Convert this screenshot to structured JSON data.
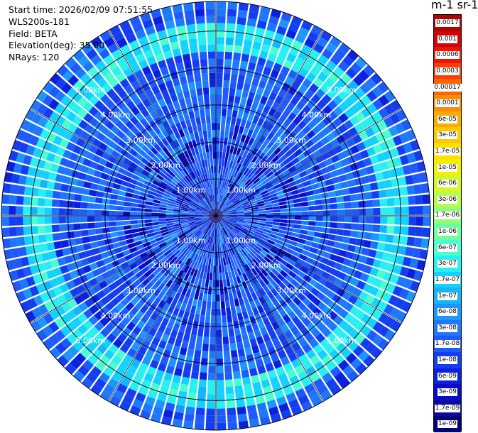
{
  "info": {
    "start_time": "Start time: 2026/02/09 07:51:55",
    "device": "WLS200s-181",
    "field": "Field: BETA",
    "elevation": "Elevation(deg): 35.00",
    "nrays": "NRays: 120"
  },
  "colorbar": {
    "title": "m-1 sr-1",
    "labels": [
      "0.0017",
      "0.001",
      "0.0006",
      "0.0003",
      "0.00017",
      "0.0001",
      "6e-05",
      "3e-05",
      "1.7e-05",
      "1e-05",
      "6e-06",
      "3e-06",
      "1.7e-06",
      "1e-06",
      "6e-07",
      "3e-07",
      "1.7e-07",
      "1e-07",
      "6e-08",
      "3e-08",
      "1.7e-08",
      "1e-08",
      "6e-09",
      "3e-09",
      "1.7e-09",
      "1e-09"
    ],
    "colors": [
      "#b00000",
      "#d40000",
      "#f01400",
      "#ff3c00",
      "#ff6400",
      "#ff8c00",
      "#ffaa00",
      "#ffc800",
      "#ffe000",
      "#f0f000",
      "#d2f828",
      "#b4ff50",
      "#90ff78",
      "#6effa0",
      "#4cffd0",
      "#28f0f0",
      "#14d2ff",
      "#14b4ff",
      "#1e96ff",
      "#1e78ff",
      "#1e5aff",
      "#143cf0",
      "#0a20dc",
      "#0a0ac8",
      "#0a0aa0",
      "#000078"
    ]
  },
  "chart_data": {
    "type": "ppi",
    "title": "",
    "field": "BETA",
    "units": "m-1 sr-1",
    "elevation_deg": 35.0,
    "n_rays": 120,
    "range_rings_km": [
      1.0,
      2.0,
      3.0,
      4.0,
      5.0
    ],
    "max_range_km": 5.8,
    "ring_labels": [
      "1.00km",
      "2.00km",
      "3.00km",
      "4.00km",
      "5.00km"
    ],
    "colorbar_min": 1e-09,
    "colorbar_max": 0.0017,
    "background_beta": 1.7e-08,
    "enhanced_layer_ranges_km": [
      4.4,
      5.3
    ],
    "enhanced_layer_beta": 2.5e-07
  }
}
